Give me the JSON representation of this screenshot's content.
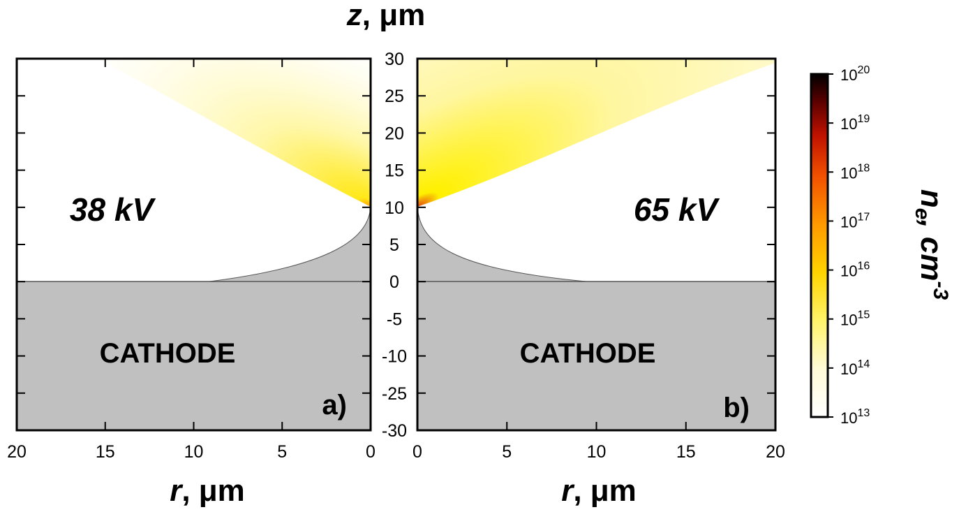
{
  "chart_data": {
    "type": "heatmap",
    "z_axis": {
      "title": "z, μm",
      "ticks": [
        "30",
        "25",
        "20",
        "15",
        "10",
        "5",
        "0",
        "-5",
        "-10",
        "-25",
        "-30"
      ],
      "range": [
        -30,
        30
      ]
    },
    "panels": [
      {
        "id": "a",
        "tag": "a)",
        "voltage": "38 kV",
        "region_label": "CATHODE",
        "r_axis": {
          "title": "r, μm",
          "ticks": [
            "20",
            "15",
            "10",
            "5",
            "0"
          ],
          "range": [
            20,
            0
          ]
        },
        "emitter_tip_z": 10,
        "plume": "weak, narrow",
        "plume_colors": [
          "#ffe818",
          "#fff7a6",
          "#ffffff"
        ]
      },
      {
        "id": "b",
        "tag": "b)",
        "voltage": "65 kV",
        "region_label": "CATHODE",
        "r_axis": {
          "title": "r, μm",
          "ticks": [
            "0",
            "5",
            "10",
            "15",
            "20"
          ],
          "range": [
            0,
            20
          ]
        },
        "emitter_tip_z": 10,
        "plume": "strong, wide",
        "plume_colors": [
          "#e44a10",
          "#fff000",
          "#fff6a0",
          "#ffffff"
        ]
      }
    ],
    "colorbar": {
      "label_main": "n",
      "label_sub": "e",
      "label_unit": ", cm",
      "label_exp": "-3",
      "scale": "log",
      "ticks": [
        {
          "base": "10",
          "exp": "20"
        },
        {
          "base": "10",
          "exp": "19"
        },
        {
          "base": "10",
          "exp": "18"
        },
        {
          "base": "10",
          "exp": "17"
        },
        {
          "base": "10",
          "exp": "16"
        },
        {
          "base": "10",
          "exp": "15"
        },
        {
          "base": "10",
          "exp": "14"
        },
        {
          "base": "10",
          "exp": "13"
        }
      ],
      "range": [
        13,
        20
      ],
      "colors": [
        "#ffffff",
        "#fffbd8",
        "#fff36a",
        "#ffd400",
        "#ff9a00",
        "#f25200",
        "#c01200",
        "#5a0000",
        "#000000"
      ]
    },
    "cathode_color": "#c0c0c0"
  }
}
